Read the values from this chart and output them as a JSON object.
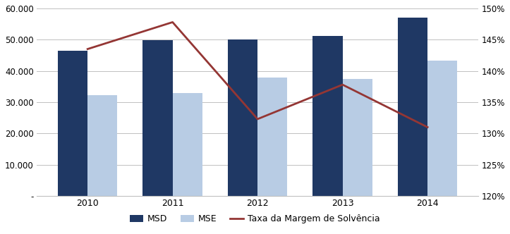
{
  "years": [
    2010,
    2011,
    2012,
    2013,
    2014
  ],
  "MSD": [
    46500,
    49800,
    50000,
    51200,
    57000
  ],
  "MSE": [
    32200,
    33000,
    38000,
    37500,
    43200
  ],
  "taxa": [
    1.435,
    1.478,
    1.323,
    1.378,
    1.31
  ],
  "bar_color_MSD": "#1F3864",
  "bar_color_MSE": "#B8CCE4",
  "line_color": "#943634",
  "ylim_left": [
    0,
    60000
  ],
  "ylim_right": [
    1.2,
    1.5
  ],
  "yticks_left": [
    0,
    10000,
    20000,
    30000,
    40000,
    50000,
    60000
  ],
  "ytick_labels_left": [
    "-",
    "10.000",
    "20.000",
    "30.000",
    "40.000",
    "50.000",
    "60.000"
  ],
  "yticks_right": [
    1.2,
    1.25,
    1.3,
    1.35,
    1.4,
    1.45,
    1.5
  ],
  "ytick_labels_right": [
    "120%",
    "125%",
    "130%",
    "135%",
    "140%",
    "145%",
    "150%"
  ],
  "legend_labels": [
    "MSD",
    "MSE",
    "Taxa da Margem de Solvência"
  ],
  "bar_width": 0.35,
  "grid_color": "#C0C0C0",
  "background_color": "#FFFFFF"
}
